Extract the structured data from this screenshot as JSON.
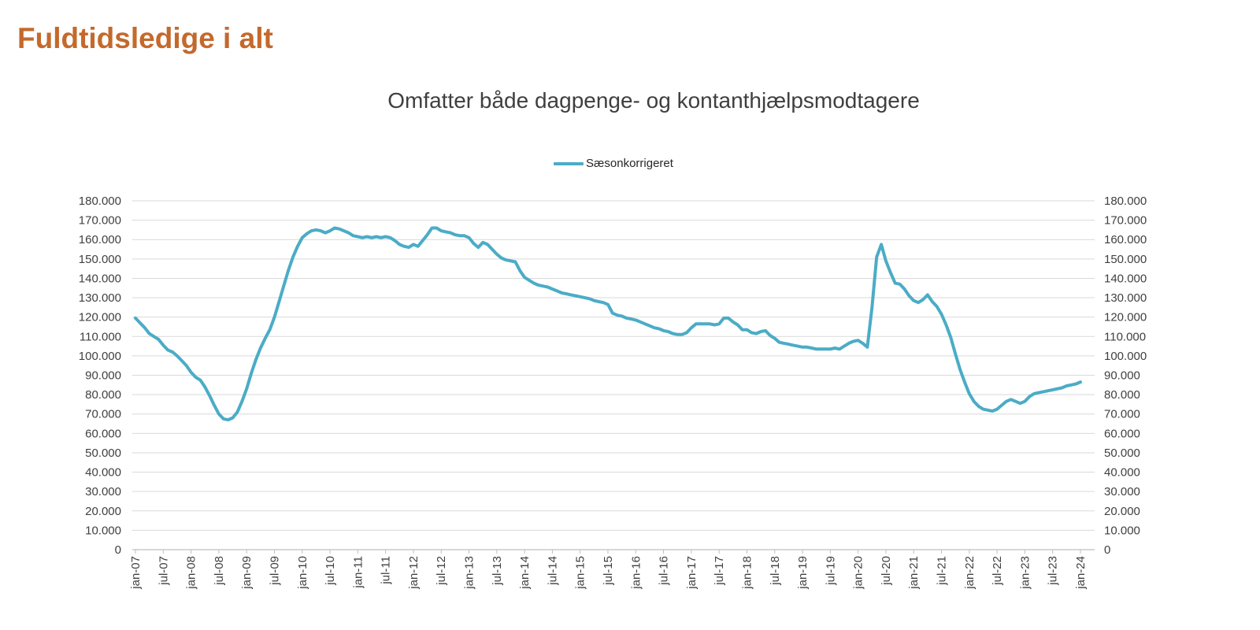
{
  "page_title": "Fuldtidsledige i alt",
  "chart": {
    "subtitle": "Omfatter både dagpenge- og kontanthjælpsmodtagere",
    "legend": [
      {
        "label": "Sæsonkorrigeret",
        "color": "#4BACC6"
      }
    ]
  },
  "colors": {
    "title": "#C4692C",
    "series": "#4BACC6",
    "gridline": "#D9D9D9",
    "axis": "#BFBFBF",
    "axis_text": "#404040"
  },
  "chart_data": {
    "type": "line",
    "title": "Omfatter både dagpenge- og kontanthjælpsmodtagere",
    "xlabel": "",
    "ylabel": "",
    "ylim": [
      0,
      180000
    ],
    "y_tick_step": 10000,
    "y_axis_sides": "both",
    "grid": "horizontal",
    "x_label_rotation": -90,
    "y_tick_labels": [
      "180.000",
      "170.000",
      "160.000",
      "150.000",
      "140.000",
      "130.000",
      "120.000",
      "110.000",
      "100.000",
      "90.000",
      "80.000",
      "70.000",
      "60.000",
      "50.000",
      "40.000",
      "30.000",
      "20.000",
      "10.000",
      "0"
    ],
    "x_tick_labels": [
      "jan-07",
      "jul-07",
      "jan-08",
      "jul-08",
      "jan-09",
      "jul-09",
      "jan-10",
      "jul-10",
      "jan-11",
      "jul-11",
      "jan-12",
      "jul-12",
      "jan-13",
      "jul-13",
      "jan-14",
      "jul-14",
      "jan-15",
      "jul-15",
      "jan-16",
      "jul-16",
      "jan-17",
      "jul-17",
      "jan-18",
      "jul-18",
      "jan-19",
      "jul-19",
      "jan-20",
      "jul-20",
      "jan-21",
      "jul-21",
      "jan-22",
      "jul-22",
      "jan-23",
      "jul-23",
      "jan-24"
    ],
    "x_tick_every": 6,
    "x": [
      "jan-07",
      "feb-07",
      "mar-07",
      "apr-07",
      "maj-07",
      "jun-07",
      "jul-07",
      "aug-07",
      "sep-07",
      "okt-07",
      "nov-07",
      "dec-07",
      "jan-08",
      "feb-08",
      "mar-08",
      "apr-08",
      "maj-08",
      "jun-08",
      "jul-08",
      "aug-08",
      "sep-08",
      "okt-08",
      "nov-08",
      "dec-08",
      "jan-09",
      "feb-09",
      "mar-09",
      "apr-09",
      "maj-09",
      "jun-09",
      "jul-09",
      "aug-09",
      "sep-09",
      "okt-09",
      "nov-09",
      "dec-09",
      "jan-10",
      "feb-10",
      "mar-10",
      "apr-10",
      "maj-10",
      "jun-10",
      "jul-10",
      "aug-10",
      "sep-10",
      "okt-10",
      "nov-10",
      "dec-10",
      "jan-11",
      "feb-11",
      "mar-11",
      "apr-11",
      "maj-11",
      "jun-11",
      "jul-11",
      "aug-11",
      "sep-11",
      "okt-11",
      "nov-11",
      "dec-11",
      "jan-12",
      "feb-12",
      "mar-12",
      "apr-12",
      "maj-12",
      "jun-12",
      "jul-12",
      "aug-12",
      "sep-12",
      "okt-12",
      "nov-12",
      "dec-12",
      "jan-13",
      "feb-13",
      "mar-13",
      "apr-13",
      "maj-13",
      "jun-13",
      "jul-13",
      "aug-13",
      "sep-13",
      "okt-13",
      "nov-13",
      "dec-13",
      "jan-14",
      "feb-14",
      "mar-14",
      "apr-14",
      "maj-14",
      "jun-14",
      "jul-14",
      "aug-14",
      "sep-14",
      "okt-14",
      "nov-14",
      "dec-14",
      "jan-15",
      "feb-15",
      "mar-15",
      "apr-15",
      "maj-15",
      "jun-15",
      "jul-15",
      "aug-15",
      "sep-15",
      "okt-15",
      "nov-15",
      "dec-15",
      "jan-16",
      "feb-16",
      "mar-16",
      "apr-16",
      "maj-16",
      "jun-16",
      "jul-16",
      "aug-16",
      "sep-16",
      "okt-16",
      "nov-16",
      "dec-16",
      "jan-17",
      "feb-17",
      "mar-17",
      "apr-17",
      "maj-17",
      "jun-17",
      "jul-17",
      "aug-17",
      "sep-17",
      "okt-17",
      "nov-17",
      "dec-17",
      "jan-18",
      "feb-18",
      "mar-18",
      "apr-18",
      "maj-18",
      "jun-18",
      "jul-18",
      "aug-18",
      "sep-18",
      "okt-18",
      "nov-18",
      "dec-18",
      "jan-19",
      "feb-19",
      "mar-19",
      "apr-19",
      "maj-19",
      "jun-19",
      "jul-19",
      "aug-19",
      "sep-19",
      "okt-19",
      "nov-19",
      "dec-19",
      "jan-20",
      "feb-20",
      "mar-20",
      "apr-20",
      "maj-20",
      "jun-20",
      "jul-20",
      "aug-20",
      "sep-20",
      "okt-20",
      "nov-20",
      "dec-20",
      "jan-21",
      "feb-21",
      "mar-21",
      "apr-21",
      "maj-21",
      "jun-21",
      "jul-21",
      "aug-21",
      "sep-21",
      "okt-21",
      "nov-21",
      "dec-21",
      "jan-22",
      "feb-22",
      "mar-22",
      "apr-22",
      "maj-22",
      "jun-22",
      "jul-22",
      "aug-22",
      "sep-22",
      "okt-22",
      "nov-22",
      "dec-22",
      "jan-23",
      "feb-23",
      "mar-23",
      "apr-23",
      "maj-23",
      "jun-23",
      "jul-23",
      "aug-23",
      "sep-23",
      "okt-23",
      "nov-23",
      "dec-23",
      "jan-24"
    ],
    "series": [
      {
        "name": "Sæsonkorrigeret",
        "color": "#4BACC6",
        "values": [
          119500,
          117000,
          114500,
          111500,
          110000,
          108500,
          105500,
          103000,
          102000,
          100000,
          97500,
          95000,
          91500,
          89000,
          87500,
          84000,
          79500,
          74500,
          70000,
          67500,
          67000,
          68000,
          71000,
          76500,
          83000,
          91000,
          98000,
          104000,
          109000,
          113500,
          120000,
          128000,
          136000,
          144000,
          151000,
          156500,
          161000,
          163000,
          164500,
          165000,
          164500,
          163500,
          164500,
          166000,
          165500,
          164500,
          163500,
          162000,
          161500,
          161000,
          161500,
          161000,
          161500,
          161000,
          161500,
          161000,
          159500,
          157500,
          156500,
          156000,
          157500,
          156500,
          159500,
          162500,
          166000,
          166000,
          164500,
          164000,
          163500,
          162500,
          162000,
          162000,
          161000,
          158000,
          156000,
          158500,
          157500,
          155000,
          152500,
          150500,
          149500,
          149000,
          148500,
          144000,
          140500,
          139000,
          137500,
          136500,
          136000,
          135500,
          134500,
          133500,
          132500,
          132000,
          131500,
          131000,
          130500,
          130000,
          129500,
          128500,
          128000,
          127500,
          126500,
          122000,
          121000,
          120500,
          119500,
          119000,
          118500,
          117500,
          116500,
          115500,
          114500,
          114000,
          113000,
          112500,
          111500,
          111000,
          111000,
          112000,
          114500,
          116500,
          116500,
          116500,
          116500,
          116000,
          116500,
          119500,
          119500,
          117500,
          116000,
          113500,
          113500,
          112000,
          111500,
          112500,
          113000,
          110500,
          109000,
          107000,
          106500,
          106000,
          105500,
          105000,
          104500,
          104500,
          104000,
          103500,
          103500,
          103500,
          103500,
          104000,
          103500,
          105000,
          106500,
          107500,
          108000,
          106500,
          104500,
          125000,
          151000,
          157500,
          149000,
          143000,
          137500,
          137000,
          134500,
          131000,
          128500,
          127500,
          129000,
          131500,
          128000,
          125500,
          121500,
          116000,
          109500,
          101000,
          93000,
          86500,
          80500,
          76500,
          74000,
          72500,
          72000,
          71500,
          72500,
          74500,
          76500,
          77500,
          76500,
          75500,
          76500,
          79000,
          80500,
          81000,
          81500,
          82000,
          82500,
          83000,
          83500,
          84500,
          85000,
          85500,
          86500
        ]
      }
    ]
  }
}
